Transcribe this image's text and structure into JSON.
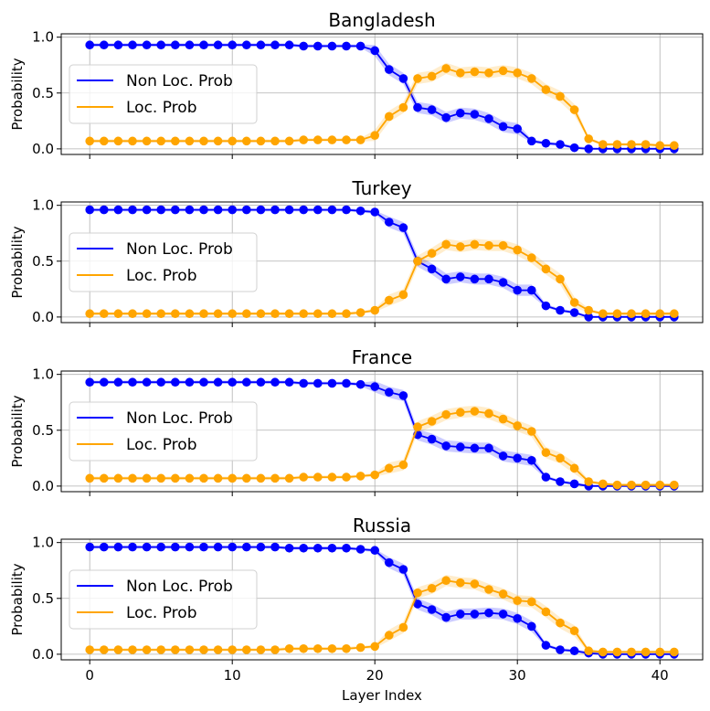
{
  "chart_data": [
    {
      "type": "line",
      "title": "Bangladesh",
      "ylabel": "Probability",
      "xlabel": "",
      "xlim": [
        -2,
        43
      ],
      "ylim": [
        -0.05,
        1.03
      ],
      "yticks": [
        "0.0",
        "0.5",
        "1.0"
      ],
      "grid": true,
      "legend_placement": "center-left",
      "series": [
        {
          "name": "Non Loc. Prob",
          "color": "#0000ff",
          "values": [
            0.93,
            0.93,
            0.93,
            0.93,
            0.93,
            0.93,
            0.93,
            0.93,
            0.93,
            0.93,
            0.93,
            0.93,
            0.93,
            0.93,
            0.93,
            0.92,
            0.92,
            0.92,
            0.92,
            0.92,
            0.88,
            0.71,
            0.63,
            0.37,
            0.35,
            0.28,
            0.32,
            0.31,
            0.27,
            0.2,
            0.18,
            0.07,
            0.05,
            0.04,
            0.01,
            0.0,
            0.0,
            0.0,
            0.0,
            0.0,
            0.0,
            0.0
          ]
        },
        {
          "name": "Loc. Prob",
          "color": "#ffa500",
          "values": [
            0.07,
            0.07,
            0.07,
            0.07,
            0.07,
            0.07,
            0.07,
            0.07,
            0.07,
            0.07,
            0.07,
            0.07,
            0.07,
            0.07,
            0.07,
            0.08,
            0.08,
            0.08,
            0.08,
            0.08,
            0.12,
            0.29,
            0.37,
            0.63,
            0.65,
            0.72,
            0.68,
            0.69,
            0.68,
            0.7,
            0.68,
            0.63,
            0.53,
            0.47,
            0.35,
            0.09,
            0.04,
            0.04,
            0.04,
            0.04,
            0.03,
            0.03
          ]
        }
      ]
    },
    {
      "type": "line",
      "title": "Turkey",
      "ylabel": "Probability",
      "xlabel": "",
      "xlim": [
        -2,
        43
      ],
      "ylim": [
        -0.05,
        1.03
      ],
      "yticks": [
        "0.0",
        "0.5",
        "1.0"
      ],
      "grid": true,
      "legend_placement": "center-left",
      "series": [
        {
          "name": "Non Loc. Prob",
          "color": "#0000ff",
          "values": [
            0.96,
            0.96,
            0.96,
            0.96,
            0.96,
            0.96,
            0.96,
            0.96,
            0.96,
            0.96,
            0.96,
            0.96,
            0.96,
            0.96,
            0.96,
            0.96,
            0.96,
            0.96,
            0.96,
            0.95,
            0.94,
            0.85,
            0.8,
            0.5,
            0.43,
            0.34,
            0.36,
            0.34,
            0.34,
            0.31,
            0.24,
            0.24,
            0.1,
            0.06,
            0.04,
            0.0,
            0.0,
            0.0,
            0.0,
            0.0,
            0.0,
            0.0
          ]
        },
        {
          "name": "Loc. Prob",
          "color": "#ffa500",
          "values": [
            0.03,
            0.03,
            0.03,
            0.03,
            0.03,
            0.03,
            0.03,
            0.03,
            0.03,
            0.03,
            0.03,
            0.03,
            0.03,
            0.03,
            0.03,
            0.03,
            0.03,
            0.03,
            0.03,
            0.04,
            0.06,
            0.15,
            0.2,
            0.5,
            0.57,
            0.65,
            0.63,
            0.65,
            0.64,
            0.64,
            0.6,
            0.53,
            0.43,
            0.34,
            0.13,
            0.06,
            0.03,
            0.03,
            0.03,
            0.03,
            0.03,
            0.03
          ]
        }
      ]
    },
    {
      "type": "line",
      "title": "France",
      "ylabel": "Probability",
      "xlabel": "",
      "xlim": [
        -2,
        43
      ],
      "ylim": [
        -0.05,
        1.03
      ],
      "yticks": [
        "0.0",
        "0.5",
        "1.0"
      ],
      "grid": true,
      "legend_placement": "center-left",
      "series": [
        {
          "name": "Non Loc. Prob",
          "color": "#0000ff",
          "values": [
            0.93,
            0.93,
            0.93,
            0.93,
            0.93,
            0.93,
            0.93,
            0.93,
            0.93,
            0.93,
            0.93,
            0.93,
            0.93,
            0.93,
            0.93,
            0.92,
            0.92,
            0.92,
            0.92,
            0.91,
            0.89,
            0.84,
            0.81,
            0.46,
            0.42,
            0.36,
            0.35,
            0.34,
            0.34,
            0.27,
            0.25,
            0.23,
            0.08,
            0.04,
            0.02,
            0.0,
            0.0,
            0.0,
            0.0,
            0.0,
            0.0,
            0.0
          ]
        },
        {
          "name": "Loc. Prob",
          "color": "#ffa500",
          "values": [
            0.07,
            0.07,
            0.07,
            0.07,
            0.07,
            0.07,
            0.07,
            0.07,
            0.07,
            0.07,
            0.07,
            0.07,
            0.07,
            0.07,
            0.07,
            0.08,
            0.08,
            0.08,
            0.08,
            0.09,
            0.1,
            0.16,
            0.19,
            0.53,
            0.58,
            0.64,
            0.66,
            0.67,
            0.65,
            0.6,
            0.54,
            0.49,
            0.3,
            0.25,
            0.16,
            0.04,
            0.02,
            0.01,
            0.01,
            0.01,
            0.01,
            0.01
          ]
        }
      ]
    },
    {
      "type": "line",
      "title": "Russia",
      "ylabel": "Probability",
      "xlabel": "Layer Index",
      "xlim": [
        -2,
        43
      ],
      "ylim": [
        -0.05,
        1.03
      ],
      "xticks": [
        "0",
        "10",
        "20",
        "30",
        "40"
      ],
      "yticks": [
        "0.0",
        "0.5",
        "1.0"
      ],
      "grid": true,
      "legend_placement": "center-left",
      "series": [
        {
          "name": "Non Loc. Prob",
          "color": "#0000ff",
          "values": [
            0.96,
            0.96,
            0.96,
            0.96,
            0.96,
            0.96,
            0.96,
            0.96,
            0.96,
            0.96,
            0.96,
            0.96,
            0.96,
            0.96,
            0.95,
            0.95,
            0.95,
            0.95,
            0.95,
            0.94,
            0.93,
            0.82,
            0.76,
            0.45,
            0.4,
            0.33,
            0.36,
            0.36,
            0.37,
            0.36,
            0.32,
            0.25,
            0.08,
            0.04,
            0.03,
            0.01,
            0.0,
            0.0,
            0.0,
            0.0,
            0.0,
            0.0
          ]
        },
        {
          "name": "Loc. Prob",
          "color": "#ffa500",
          "values": [
            0.04,
            0.04,
            0.04,
            0.04,
            0.04,
            0.04,
            0.04,
            0.04,
            0.04,
            0.04,
            0.04,
            0.04,
            0.04,
            0.04,
            0.05,
            0.05,
            0.05,
            0.05,
            0.05,
            0.06,
            0.07,
            0.17,
            0.24,
            0.55,
            0.59,
            0.66,
            0.64,
            0.63,
            0.58,
            0.54,
            0.48,
            0.47,
            0.38,
            0.28,
            0.21,
            0.03,
            0.02,
            0.02,
            0.02,
            0.02,
            0.02,
            0.02
          ]
        }
      ]
    }
  ]
}
